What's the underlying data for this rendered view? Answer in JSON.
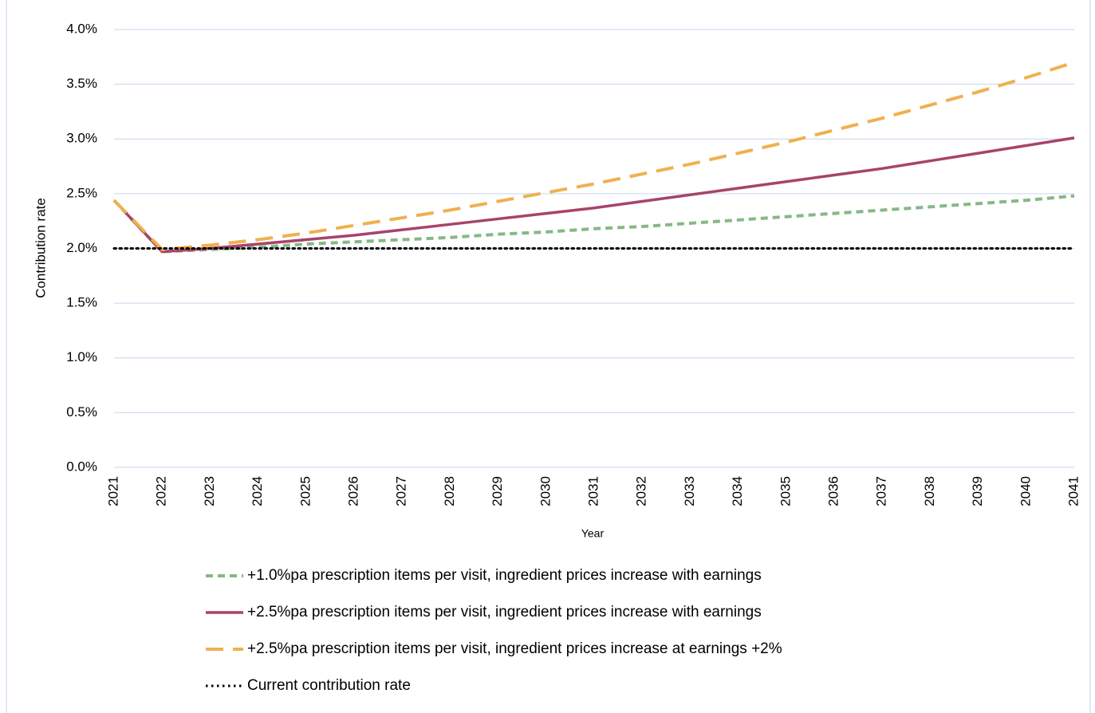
{
  "chart_data": {
    "type": "line",
    "y_axis_label": "Contribution rate",
    "x_axis_label": "Year",
    "categories": [
      "2021",
      "2022",
      "2023",
      "2024",
      "2025",
      "2026",
      "2027",
      "2028",
      "2029",
      "2030",
      "2031",
      "2032",
      "2033",
      "2034",
      "2035",
      "2036",
      "2037",
      "2038",
      "2039",
      "2040",
      "2041"
    ],
    "ylim": [
      0,
      4
    ],
    "yticks": [
      {
        "value": 0,
        "label": "0.0%"
      },
      {
        "value": 0.5,
        "label": "0.5%"
      },
      {
        "value": 1,
        "label": "1.0%"
      },
      {
        "value": 1.5,
        "label": "1.5%"
      },
      {
        "value": 2,
        "label": "2.0%"
      },
      {
        "value": 2.5,
        "label": "2.5%"
      },
      {
        "value": 3,
        "label": "3.0%"
      },
      {
        "value": 3.5,
        "label": "3.5%"
      },
      {
        "value": 4,
        "label": "4.0%"
      }
    ],
    "grid": true,
    "legend": "bottom",
    "series": [
      {
        "name": "+1.0%pa prescription items per visit, ingredient prices increase with earnings",
        "color": "#86b886",
        "style": "dashed",
        "values": [
          2.44,
          1.97,
          1.99,
          2.01,
          2.04,
          2.06,
          2.08,
          2.1,
          2.13,
          2.15,
          2.18,
          2.2,
          2.23,
          2.26,
          2.29,
          2.32,
          2.35,
          2.38,
          2.41,
          2.44,
          2.48
        ]
      },
      {
        "name": "+2.5%pa prescription items per visit, ingredient prices increase with earnings",
        "color": "#a8436a",
        "style": "solid",
        "values": [
          2.44,
          1.97,
          2.0,
          2.04,
          2.08,
          2.12,
          2.17,
          2.22,
          2.27,
          2.32,
          2.37,
          2.43,
          2.49,
          2.55,
          2.61,
          2.67,
          2.73,
          2.8,
          2.87,
          2.94,
          3.01
        ]
      },
      {
        "name": "+2.5%pa prescription items per visit, ingredient prices increase at earnings +2%",
        "color": "#f0b04f",
        "style": "long-dashed",
        "values": [
          2.44,
          1.99,
          2.03,
          2.08,
          2.14,
          2.21,
          2.28,
          2.35,
          2.43,
          2.51,
          2.59,
          2.68,
          2.77,
          2.87,
          2.97,
          3.08,
          3.19,
          3.31,
          3.43,
          3.56,
          3.7
        ]
      },
      {
        "name": "Current contribution rate",
        "color": "#000000",
        "style": "dotted",
        "values": [
          2,
          2,
          2,
          2,
          2,
          2,
          2,
          2,
          2,
          2,
          2,
          2,
          2,
          2,
          2,
          2,
          2,
          2,
          2,
          2,
          2
        ]
      }
    ]
  }
}
